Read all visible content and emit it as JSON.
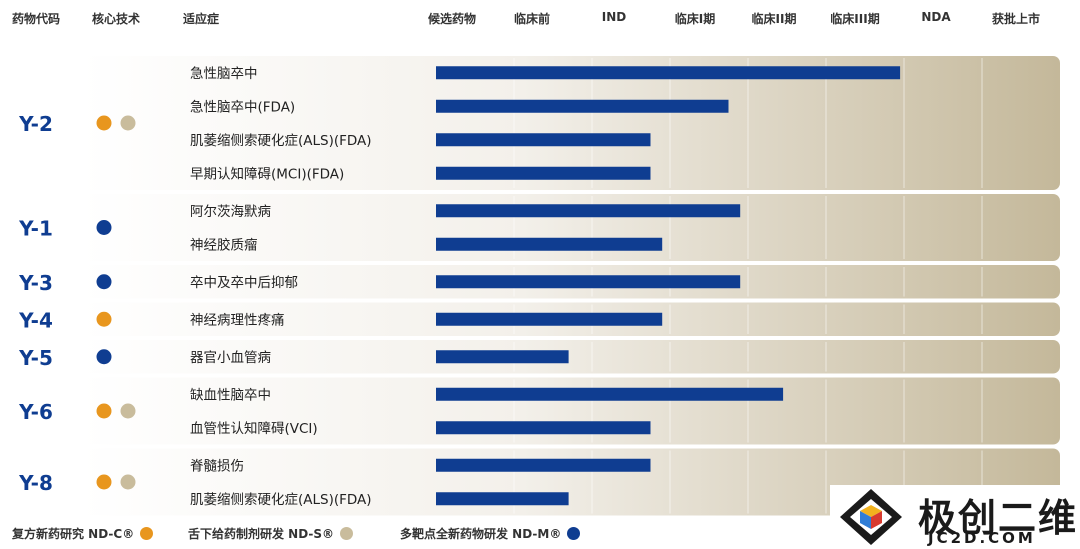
{
  "headers": {
    "code": "药物代码",
    "tech": "核心技术",
    "indication": "适应症",
    "stages": [
      "候选药物",
      "临床前",
      "IND",
      "临床I期",
      "临床II期",
      "临床III期",
      "NDA",
      "获批上市"
    ]
  },
  "colors": {
    "bar": "#0f3d91",
    "code_text": "#0f3d91",
    "dot_c": "#e8961e",
    "dot_s": "#c9bc9c",
    "dot_m": "#0f3d91",
    "panel_light": "#f3f0ea",
    "panel_dark": "#c4b89a"
  },
  "chart_data": {
    "type": "bar",
    "orientation": "horizontal",
    "value_axis": "development stage (0 = start of 候选药物, 8 = end of 获批上市)",
    "groups": [
      {
        "code": "Y-2",
        "tech": [
          "ND-C",
          "ND-S"
        ],
        "items": [
          {
            "indication": "急性脑卒中",
            "value": 5.95
          },
          {
            "indication": "急性脑卒中(FDA)",
            "value": 3.75
          },
          {
            "indication": "肌萎缩侧索硬化症(ALS)(FDA)",
            "value": 2.75
          },
          {
            "indication": "早期认知障碍(MCI)(FDA)",
            "value": 2.75
          }
        ]
      },
      {
        "code": "Y-1",
        "tech": [
          "ND-M"
        ],
        "items": [
          {
            "indication": "阿尔茨海默病",
            "value": 3.9
          },
          {
            "indication": "神经胶质瘤",
            "value": 2.9
          }
        ]
      },
      {
        "code": "Y-3",
        "tech": [
          "ND-M"
        ],
        "items": [
          {
            "indication": "卒中及卒中后抑郁",
            "value": 3.9
          }
        ]
      },
      {
        "code": "Y-4",
        "tech": [
          "ND-C"
        ],
        "items": [
          {
            "indication": "神经病理性疼痛",
            "value": 2.9
          }
        ]
      },
      {
        "code": "Y-5",
        "tech": [
          "ND-M"
        ],
        "items": [
          {
            "indication": "器官小血管病",
            "value": 1.7
          }
        ]
      },
      {
        "code": "Y-6",
        "tech": [
          "ND-C",
          "ND-S"
        ],
        "items": [
          {
            "indication": "缺血性脑卒中",
            "value": 4.45
          },
          {
            "indication": "血管性认知障碍(VCI)",
            "value": 2.75
          }
        ]
      },
      {
        "code": "Y-8",
        "tech": [
          "ND-C",
          "ND-S"
        ],
        "items": [
          {
            "indication": "脊髓损伤",
            "value": 2.75
          },
          {
            "indication": "肌萎缩侧索硬化症(ALS)(FDA)",
            "value": 1.7
          }
        ]
      }
    ]
  },
  "legend": [
    {
      "label": "复方新药研究 ND-C®",
      "color": "#e8961e"
    },
    {
      "label": "舌下给药制剂研发 ND-S®",
      "color": "#c9bc9c"
    },
    {
      "label": "多靶点全新药物研发 ND-M®",
      "color": "#0f3d91"
    }
  ],
  "watermark": {
    "brand": "极创二维",
    "site": "JC2D.COM"
  }
}
